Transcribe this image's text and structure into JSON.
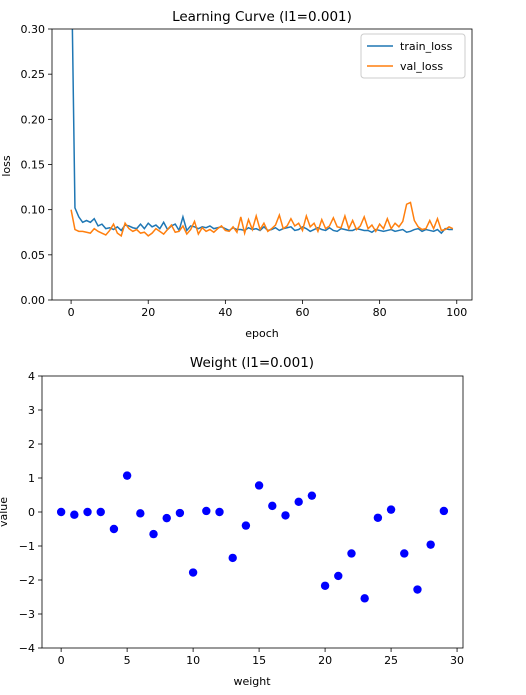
{
  "chart_data": [
    {
      "type": "line",
      "title": "Learning Curve (l1=0.001)",
      "xlabel": "epoch",
      "ylabel": "loss",
      "xlim": [
        -4.95,
        103.95
      ],
      "ylim": [
        0.0,
        0.3
      ],
      "xticks": [
        0,
        20,
        40,
        60,
        80,
        100
      ],
      "yticks": [
        0.0,
        0.05,
        0.1,
        0.15,
        0.2,
        0.25,
        0.3
      ],
      "ytick_labels": [
        "0.00",
        "0.05",
        "0.10",
        "0.15",
        "0.20",
        "0.25",
        "0.30"
      ],
      "legend": "top-right",
      "series": [
        {
          "name": "train_loss",
          "color": "#1f77b4",
          "x": [
            0,
            1,
            2,
            3,
            4,
            5,
            6,
            7,
            8,
            9,
            10,
            11,
            12,
            13,
            14,
            15,
            16,
            17,
            18,
            19,
            20,
            21,
            22,
            23,
            24,
            25,
            26,
            27,
            28,
            29,
            30,
            31,
            32,
            33,
            34,
            35,
            36,
            37,
            38,
            39,
            40,
            41,
            42,
            43,
            44,
            45,
            46,
            47,
            48,
            49,
            50,
            51,
            52,
            53,
            54,
            55,
            56,
            57,
            58,
            59,
            60,
            61,
            62,
            63,
            64,
            65,
            66,
            67,
            68,
            69,
            70,
            71,
            72,
            73,
            74,
            75,
            76,
            77,
            78,
            79,
            80,
            81,
            82,
            83,
            84,
            85,
            86,
            87,
            88,
            89,
            90,
            91,
            92,
            93,
            94,
            95,
            96,
            97,
            98,
            99
          ],
          "values": [
            0.4,
            0.102,
            0.092,
            0.086,
            0.088,
            0.086,
            0.09,
            0.082,
            0.084,
            0.079,
            0.08,
            0.078,
            0.081,
            0.077,
            0.083,
            0.082,
            0.08,
            0.079,
            0.084,
            0.079,
            0.085,
            0.081,
            0.083,
            0.079,
            0.086,
            0.078,
            0.082,
            0.084,
            0.077,
            0.092,
            0.077,
            0.082,
            0.081,
            0.079,
            0.081,
            0.08,
            0.082,
            0.079,
            0.08,
            0.081,
            0.079,
            0.077,
            0.08,
            0.078,
            0.078,
            0.077,
            0.08,
            0.078,
            0.079,
            0.077,
            0.081,
            0.077,
            0.078,
            0.08,
            0.077,
            0.079,
            0.08,
            0.081,
            0.077,
            0.078,
            0.081,
            0.079,
            0.076,
            0.078,
            0.08,
            0.078,
            0.077,
            0.08,
            0.077,
            0.076,
            0.079,
            0.078,
            0.077,
            0.077,
            0.079,
            0.078,
            0.077,
            0.077,
            0.075,
            0.078,
            0.077,
            0.076,
            0.077,
            0.078,
            0.076,
            0.077,
            0.078,
            0.075,
            0.076,
            0.078,
            0.079,
            0.076,
            0.078,
            0.077,
            0.076,
            0.078,
            0.074,
            0.079,
            0.078,
            0.078
          ]
        },
        {
          "name": "val_loss",
          "color": "#ff7f0e",
          "x": [
            0,
            1,
            2,
            3,
            4,
            5,
            6,
            7,
            8,
            9,
            10,
            11,
            12,
            13,
            14,
            15,
            16,
            17,
            18,
            19,
            20,
            21,
            22,
            23,
            24,
            25,
            26,
            27,
            28,
            29,
            30,
            31,
            32,
            33,
            34,
            35,
            36,
            37,
            38,
            39,
            40,
            41,
            42,
            43,
            44,
            45,
            46,
            47,
            48,
            49,
            50,
            51,
            52,
            53,
            54,
            55,
            56,
            57,
            58,
            59,
            60,
            61,
            62,
            63,
            64,
            65,
            66,
            67,
            68,
            69,
            70,
            71,
            72,
            73,
            74,
            75,
            76,
            77,
            78,
            79,
            80,
            81,
            82,
            83,
            84,
            85,
            86,
            87,
            88,
            89,
            90,
            91,
            92,
            93,
            94,
            95,
            96,
            97,
            98,
            99
          ],
          "values": [
            0.1,
            0.078,
            0.076,
            0.076,
            0.075,
            0.074,
            0.079,
            0.076,
            0.074,
            0.072,
            0.077,
            0.084,
            0.074,
            0.071,
            0.085,
            0.079,
            0.076,
            0.078,
            0.074,
            0.075,
            0.071,
            0.074,
            0.079,
            0.076,
            0.073,
            0.078,
            0.083,
            0.075,
            0.076,
            0.082,
            0.073,
            0.078,
            0.087,
            0.073,
            0.08,
            0.076,
            0.078,
            0.075,
            0.079,
            0.082,
            0.077,
            0.076,
            0.081,
            0.075,
            0.092,
            0.074,
            0.089,
            0.078,
            0.093,
            0.078,
            0.085,
            0.076,
            0.079,
            0.083,
            0.094,
            0.079,
            0.082,
            0.09,
            0.082,
            0.085,
            0.077,
            0.093,
            0.081,
            0.085,
            0.076,
            0.089,
            0.079,
            0.082,
            0.091,
            0.081,
            0.08,
            0.093,
            0.079,
            0.088,
            0.078,
            0.082,
            0.092,
            0.079,
            0.083,
            0.076,
            0.084,
            0.079,
            0.09,
            0.079,
            0.085,
            0.081,
            0.087,
            0.106,
            0.108,
            0.088,
            0.081,
            0.078,
            0.079,
            0.088,
            0.079,
            0.09,
            0.077,
            0.078,
            0.081,
            0.079
          ]
        }
      ]
    },
    {
      "type": "scatter",
      "title": "Weight (l1=0.001)",
      "xlabel": "weight",
      "ylabel": "value",
      "xlim": [
        -1.45,
        30.45
      ],
      "ylim": [
        -4,
        4
      ],
      "xticks": [
        0,
        5,
        10,
        15,
        20,
        25,
        30
      ],
      "yticks": [
        -4,
        -3,
        -2,
        -1,
        0,
        1,
        2,
        3,
        4
      ],
      "color": "#0000ff",
      "x": [
        0,
        1,
        2,
        3,
        4,
        5,
        6,
        7,
        8,
        9,
        10,
        11,
        12,
        13,
        14,
        15,
        16,
        17,
        18,
        19,
        20,
        21,
        22,
        23,
        24,
        25,
        26,
        27,
        28,
        29
      ],
      "values": [
        0.0,
        -0.08,
        0.0,
        0.0,
        -0.5,
        1.07,
        -0.04,
        -0.65,
        -0.18,
        -0.03,
        -1.78,
        0.03,
        0.0,
        -1.35,
        -0.4,
        0.78,
        0.18,
        -0.1,
        0.3,
        0.48,
        -2.17,
        -1.88,
        -1.22,
        -2.54,
        -0.17,
        0.07,
        -1.22,
        -2.28,
        -0.96,
        0.03
      ]
    }
  ]
}
